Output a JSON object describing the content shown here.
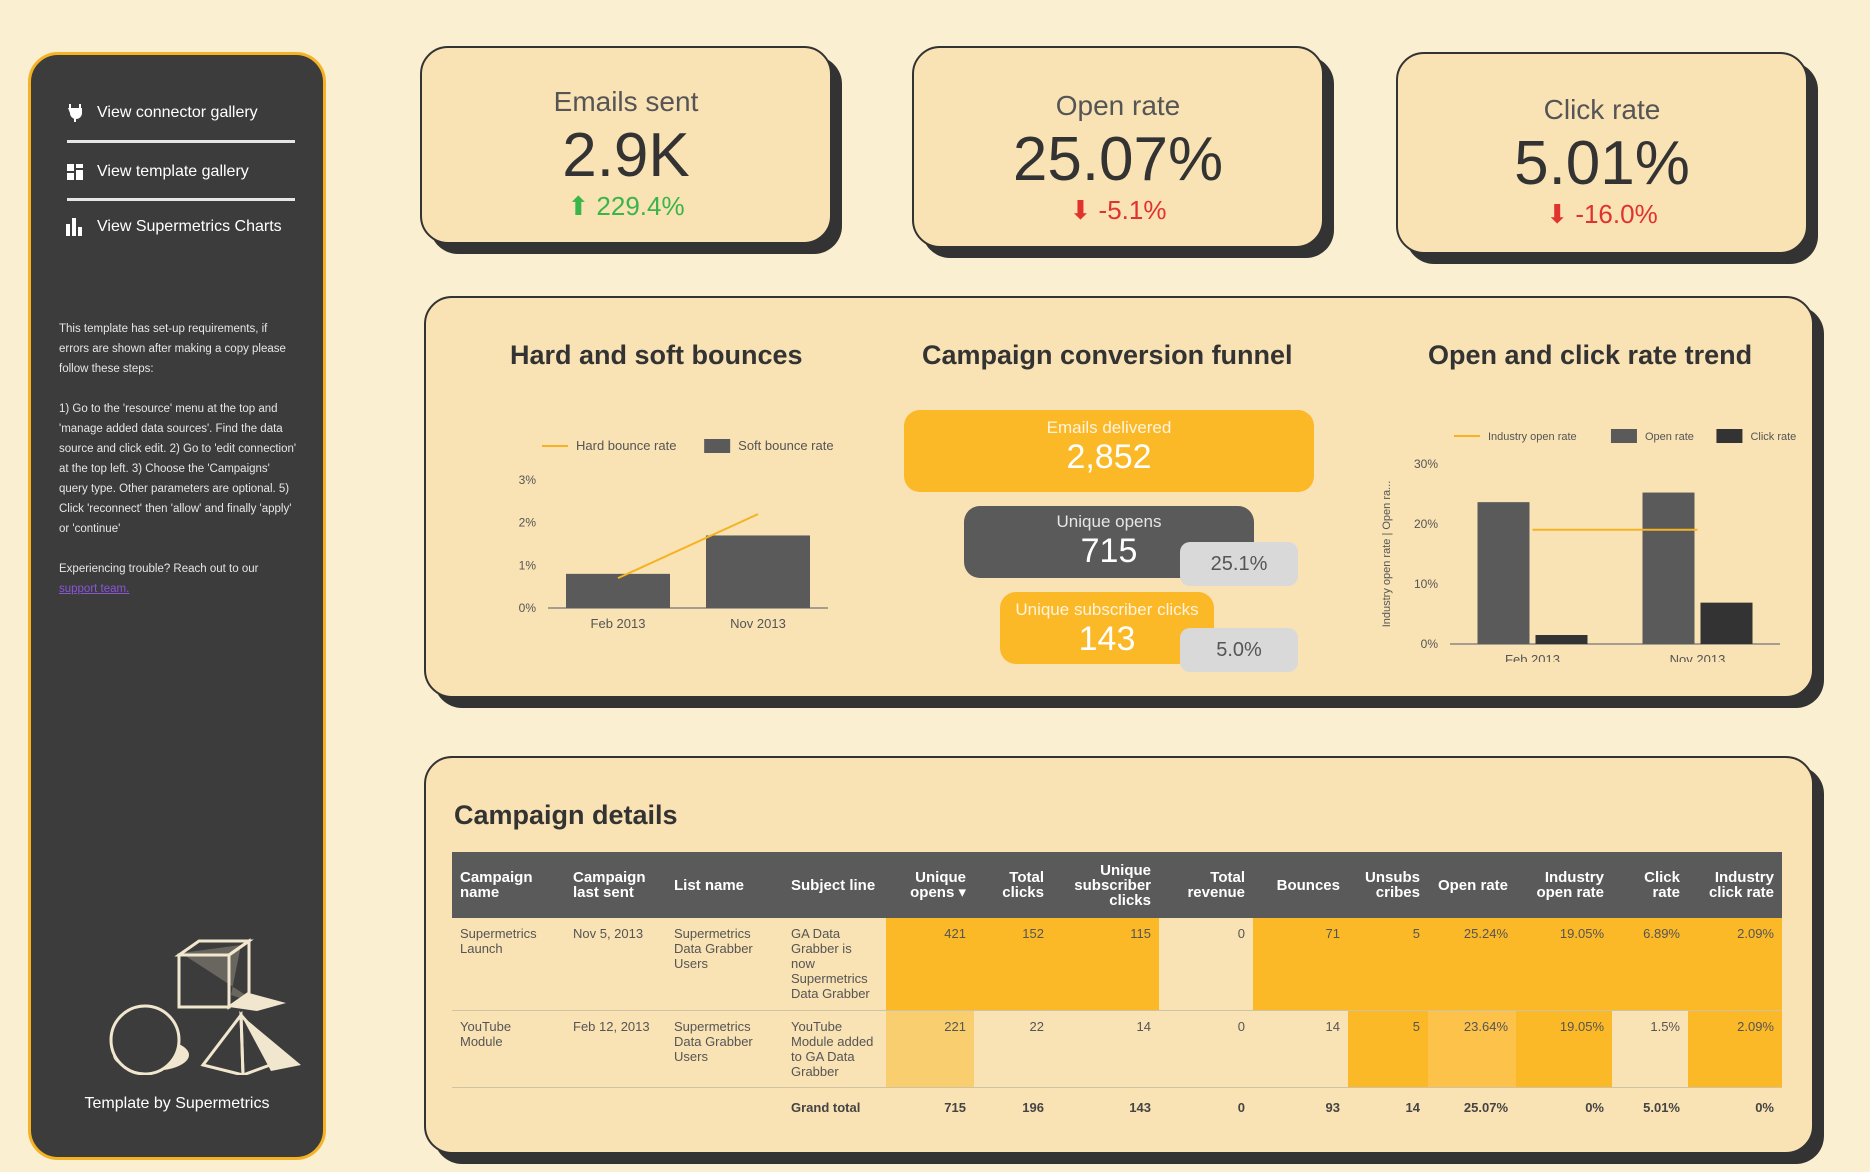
{
  "sidebar": {
    "nav": [
      {
        "label": "View connector gallery",
        "icon": "plug-icon"
      },
      {
        "label": "View template gallery",
        "icon": "grid-icon"
      },
      {
        "label": "View Supermetrics Charts",
        "icon": "bar-chart-icon"
      }
    ],
    "note_p1": "This template has set-up requirements, if errors are shown after making a copy please follow these steps:",
    "note_p2": "1) Go to the 'resource' menu at the top and 'manage added data sources'. Find the data source and click edit. 2) Go to 'edit connection' at the top left. 3) Choose the 'Campaigns' query type. Other parameters are optional. 5) Click 'reconnect' then 'allow' and finally 'apply' or 'continue'",
    "note_p3": "Experiencing trouble? Reach out to our",
    "support_link": "support team.",
    "credit": "Template by Supermetrics"
  },
  "kpis": [
    {
      "label": "Emails sent",
      "value": "2.9K",
      "delta": "229.4%",
      "direction": "up"
    },
    {
      "label": "Open rate",
      "value": "25.07%",
      "delta": "-5.1%",
      "direction": "down"
    },
    {
      "label": "Click rate",
      "value": "5.01%",
      "delta": "-16.0%",
      "direction": "down"
    }
  ],
  "charts_titles": {
    "bounces": "Hard and soft bounces",
    "funnel": "Campaign conversion funnel",
    "trend": "Open and click rate trend"
  },
  "funnel": {
    "delivered_label": "Emails delivered",
    "delivered_value": "2,852",
    "opens_label": "Unique opens",
    "opens_value": "715",
    "opens_pct": "25.1%",
    "clicks_label": "Unique subscriber clicks",
    "clicks_value": "143",
    "clicks_pct": "5.0%"
  },
  "chart_data": [
    {
      "type": "bar",
      "title": "Hard and soft bounces",
      "categories": [
        "Feb 2013",
        "Nov 2013"
      ],
      "series": [
        {
          "name": "Hard bounce rate",
          "kind": "line",
          "values": [
            0.7,
            2.2
          ],
          "color": "#f5b324"
        },
        {
          "name": "Soft bounce rate",
          "kind": "bar",
          "values": [
            0.8,
            1.7
          ],
          "color": "#5a5a5a"
        }
      ],
      "yticks": [
        "3%",
        "2%",
        "1%",
        "0%"
      ],
      "ylim": [
        0,
        3
      ]
    },
    {
      "type": "bar",
      "title": "Open and click rate trend",
      "categories": [
        "Feb 2013",
        "Nov 2013"
      ],
      "series": [
        {
          "name": "Industry open rate",
          "kind": "line",
          "values": [
            19.05,
            19.05
          ],
          "color": "#f5b324"
        },
        {
          "name": "Open rate",
          "kind": "bar",
          "values": [
            23.64,
            25.24
          ],
          "color": "#5a5a5a"
        },
        {
          "name": "Click rate",
          "kind": "bar",
          "values": [
            1.5,
            6.89
          ],
          "color": "#333333"
        }
      ],
      "ylabel": "Industry open rate | Open ra...",
      "yticks": [
        "30%",
        "20%",
        "10%",
        "0%"
      ],
      "ylim": [
        0,
        30
      ]
    }
  ],
  "table": {
    "title": "Campaign details",
    "headers": [
      "Campaign name",
      "Campaign last sent",
      "List name",
      "Subject line",
      "Unique opens ▾",
      "Total clicks",
      "Unique subscriber clicks",
      "Total revenue",
      "Bounces",
      "Unsubs cribes",
      "Open rate",
      "Industry open rate",
      "Click rate",
      "Industry click rate"
    ],
    "rows": [
      [
        "Supermetrics Launch",
        "Nov 5, 2013",
        "Supermetrics Data Grabber Users",
        "GA Data Grabber is now Supermetrics Data Grabber",
        "421",
        "152",
        "115",
        "0",
        "71",
        "5",
        "25.24%",
        "19.05%",
        "6.89%",
        "2.09%"
      ],
      [
        "YouTube Module",
        "Feb 12, 2013",
        "Supermetrics Data Grabber Users",
        "YouTube Module added to GA Data Grabber",
        "221",
        "22",
        "14",
        "0",
        "14",
        "5",
        "23.64%",
        "19.05%",
        "1.5%",
        "2.09%"
      ]
    ],
    "totals": [
      "",
      "",
      "",
      "Grand total",
      "715",
      "196",
      "143",
      "0",
      "93",
      "14",
      "25.07%",
      "0%",
      "5.01%",
      "0%"
    ],
    "heat": [
      [
        "none",
        "none",
        "none",
        "none",
        "#fbb827",
        "#fbb827",
        "#fbb827",
        "#f9e2b3",
        "#fbb827",
        "#fbb827",
        "#fbb827",
        "#fbb827",
        "#fbb827",
        "#fbb827"
      ],
      [
        "none",
        "none",
        "none",
        "none",
        "#f9ce6e",
        "#f9e2b3",
        "#f9e2b3",
        "#f9e2b3",
        "#f9e2b3",
        "#fbb827",
        "#fcc24a",
        "#fbb827",
        "#f9e2b3",
        "#fbb827"
      ]
    ]
  },
  "colors": {
    "accent": "#f5b324",
    "dark": "#3c3c3c",
    "bg": "#fbefd2",
    "card": "#f9e2b3"
  }
}
